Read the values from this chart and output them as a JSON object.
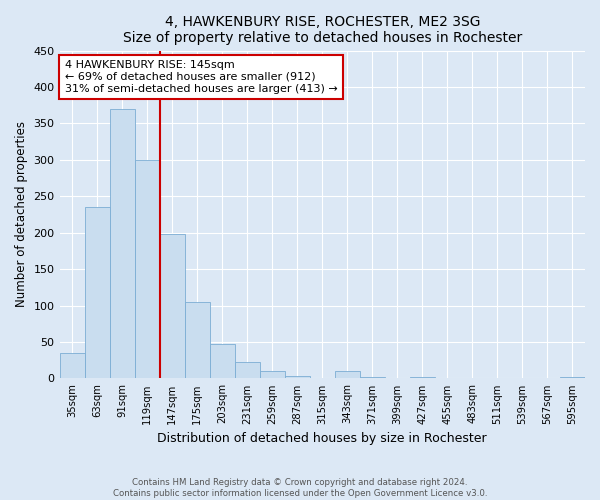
{
  "title": "4, HAWKENBURY RISE, ROCHESTER, ME2 3SG",
  "subtitle": "Size of property relative to detached houses in Rochester",
  "xlabel": "Distribution of detached houses by size in Rochester",
  "ylabel": "Number of detached properties",
  "bar_labels": [
    "35sqm",
    "63sqm",
    "91sqm",
    "119sqm",
    "147sqm",
    "175sqm",
    "203sqm",
    "231sqm",
    "259sqm",
    "287sqm",
    "315sqm",
    "343sqm",
    "371sqm",
    "399sqm",
    "427sqm",
    "455sqm",
    "483sqm",
    "511sqm",
    "539sqm",
    "567sqm",
    "595sqm"
  ],
  "bar_values": [
    35,
    235,
    370,
    300,
    198,
    105,
    47,
    22,
    10,
    3,
    0,
    10,
    2,
    0,
    2,
    0,
    0,
    0,
    0,
    0,
    2
  ],
  "bar_color": "#c9ddef",
  "bar_edge_color": "#7badd4",
  "vline_color": "#cc0000",
  "annotation_title": "4 HAWKENBURY RISE: 145sqm",
  "annotation_line1": "← 69% of detached houses are smaller (912)",
  "annotation_line2": "31% of semi-detached houses are larger (413) →",
  "annotation_box_color": "#ffffff",
  "annotation_box_edge": "#cc0000",
  "ylim": [
    0,
    450
  ],
  "yticks": [
    0,
    50,
    100,
    150,
    200,
    250,
    300,
    350,
    400,
    450
  ],
  "footnote1": "Contains HM Land Registry data © Crown copyright and database right 2024.",
  "footnote2": "Contains public sector information licensed under the Open Government Licence v3.0.",
  "bg_color": "#dce8f5",
  "plot_bg_color": "#dce8f5"
}
